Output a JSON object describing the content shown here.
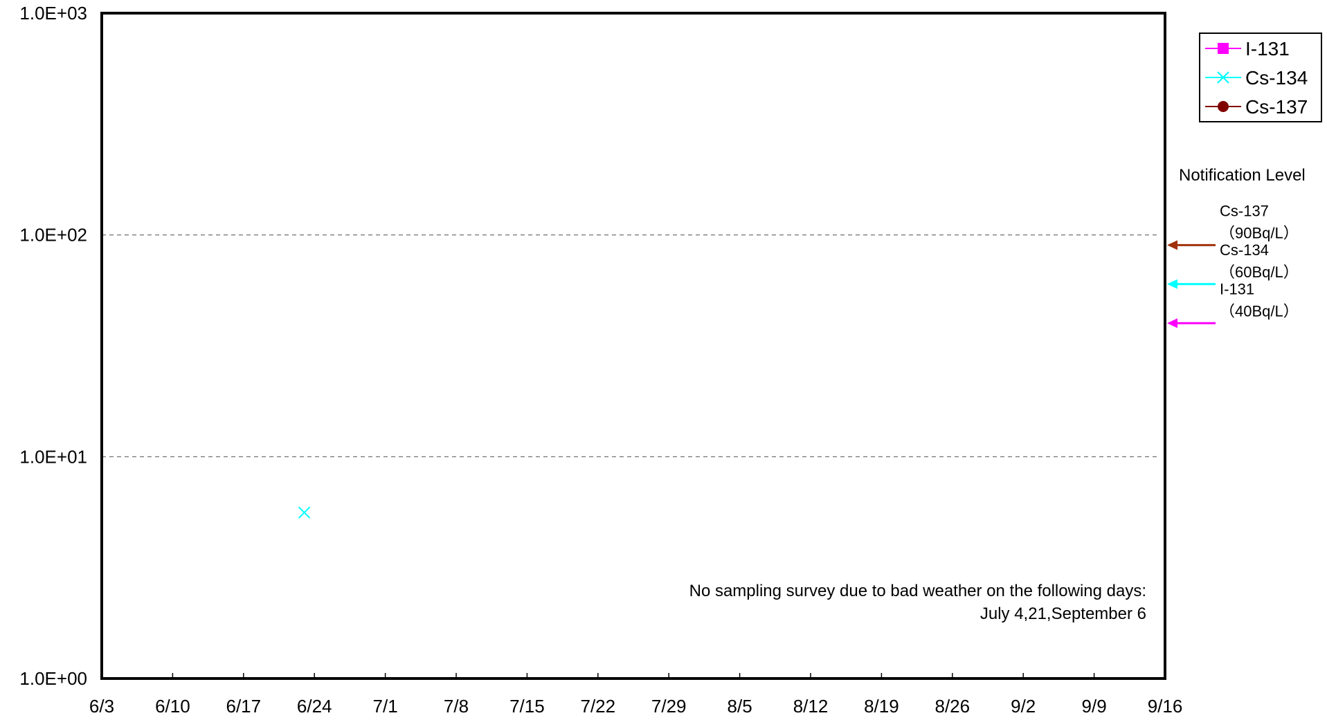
{
  "chart_data": {
    "type": "scatter",
    "title": "",
    "xlabel": "",
    "ylabel": "",
    "y_scale": "log",
    "ylim": [
      1,
      1000
    ],
    "y_tick_values": [
      1,
      10,
      100,
      1000
    ],
    "y_tick_labels": [
      "1.0E+00",
      "1.0E+01",
      "1.0E+02",
      "1.0E+03"
    ],
    "x_tick_labels": [
      "6/3",
      "6/10",
      "6/17",
      "6/24",
      "7/1",
      "7/8",
      "7/15",
      "7/22",
      "7/29",
      "8/5",
      "8/12",
      "8/19",
      "8/26",
      "9/2",
      "9/9",
      "9/16"
    ],
    "x_range": [
      "6/3",
      "9/16"
    ],
    "gridlines_y": [
      10,
      100
    ],
    "legend_position": "top-right",
    "series": [
      {
        "name": "I-131",
        "color": "#ff00ff",
        "marker": "square",
        "points": []
      },
      {
        "name": "Cs-134",
        "color": "#00ffff",
        "marker": "x",
        "points": [
          {
            "x": "6/23",
            "y": 5.6
          }
        ]
      },
      {
        "name": "Cs-137",
        "color": "#800000",
        "marker": "circle",
        "points": []
      }
    ],
    "notification_level": {
      "title": "Notification Level",
      "items": [
        {
          "nuclide": "Cs-137",
          "level_text": "（90Bq/L）",
          "value": 90,
          "color": "#a0300a"
        },
        {
          "nuclide": "Cs-134",
          "level_text": "（60Bq/L）",
          "value": 60,
          "color": "#00ffff"
        },
        {
          "nuclide": "I-131",
          "level_text": "（40Bq/L）",
          "value": 40,
          "color": "#ff00ff"
        }
      ]
    },
    "annotation": [
      "No sampling survey due to bad weather on the following days:",
      "July 4,21,September 6"
    ]
  }
}
